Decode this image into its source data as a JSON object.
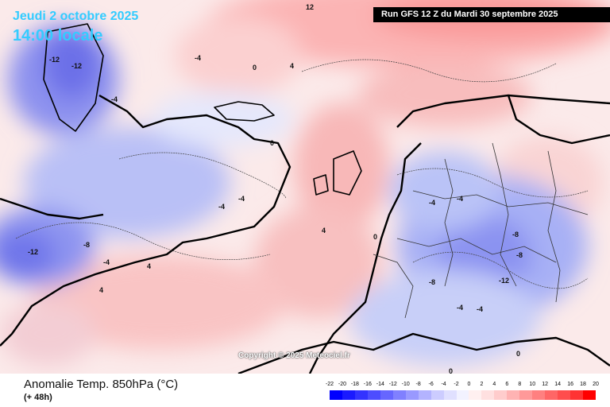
{
  "header": {
    "valid_date": "Jeudi 2 octobre 2025",
    "valid_time": "14:00 locale",
    "run_info": "Run GFS 12 Z du Mardi 30 septembre 2025"
  },
  "footer": {
    "parameter": "Anomalie Temp. 850hPa (°C)",
    "lead_time": "(+ 48h)",
    "copyright": "Copyright © 2025 Meteociel.fr"
  },
  "legend": {
    "unit": "°C",
    "ticks": [
      "-22",
      "-20",
      "-18",
      "-16",
      "-14",
      "-12",
      "-10",
      "-8",
      "-6",
      "-4",
      "-2",
      "0",
      "2",
      "4",
      "6",
      "8",
      "10",
      "12",
      "14",
      "16",
      "18",
      "20"
    ],
    "colors": [
      "#0000ff",
      "#1a1aff",
      "#3333ff",
      "#4d4dff",
      "#6666ff",
      "#8080ff",
      "#9999ff",
      "#b3b3ff",
      "#ccccff",
      "#e0e0ff",
      "#f2f2ff",
      "#fff0f0",
      "#ffe0e0",
      "#ffcccc",
      "#ffb3b3",
      "#ff9999",
      "#ff8080",
      "#ff6666",
      "#ff4d4d",
      "#ff3333",
      "#ff0000"
    ]
  },
  "contour_labels": [
    {
      "value": "-12",
      "region": "greenland"
    },
    {
      "value": "-12",
      "region": "greenland"
    },
    {
      "value": "-4",
      "region": "greenland-coast"
    },
    {
      "value": "-4",
      "region": "iceland"
    },
    {
      "value": "0",
      "region": "iceland"
    },
    {
      "value": "4",
      "region": "denmark-strait"
    },
    {
      "value": "-4",
      "region": "north-atlantic"
    },
    {
      "value": "-4",
      "region": "north-atlantic"
    },
    {
      "value": "-8",
      "region": "west-atlantic"
    },
    {
      "value": "-12",
      "region": "west-atlantic"
    },
    {
      "value": "-4",
      "region": "west-atlantic"
    },
    {
      "value": "4",
      "region": "subtropical-atlantic"
    },
    {
      "value": "4",
      "region": "subtropical-atlantic"
    },
    {
      "value": "0",
      "region": "british-isles"
    },
    {
      "value": "4",
      "region": "british-isles"
    },
    {
      "value": "0",
      "region": "france"
    },
    {
      "value": "-4",
      "region": "scandinavia"
    },
    {
      "value": "-4",
      "region": "central-europe"
    },
    {
      "value": "-8",
      "region": "eastern-europe"
    },
    {
      "value": "-8",
      "region": "eastern-europe"
    },
    {
      "value": "-12",
      "region": "balkans"
    },
    {
      "value": "-8",
      "region": "balkans"
    },
    {
      "value": "-4",
      "region": "italy"
    },
    {
      "value": "0",
      "region": "mediterranean"
    },
    {
      "value": "0",
      "region": "mediterranean"
    },
    {
      "value": "-4",
      "region": "iberia"
    },
    {
      "value": "12",
      "region": "top-north"
    }
  ]
}
